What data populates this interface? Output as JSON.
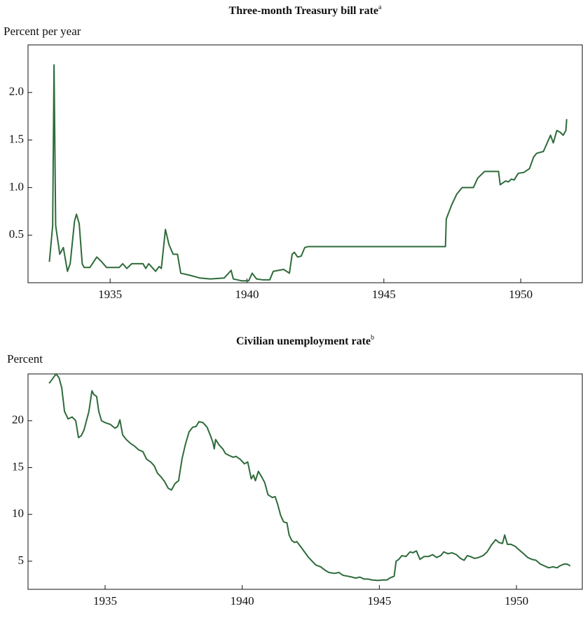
{
  "chart_data": [
    {
      "type": "line",
      "title": "Three-month Treasury bill rate",
      "title_note": "a",
      "y_label": "Percent per year",
      "xlim": [
        1932,
        1952.25
      ],
      "xticks": [
        1935,
        1940,
        1945,
        1950
      ],
      "ylim": [
        0,
        2.5
      ],
      "yticks": [
        0.5,
        {
          "value": 1,
          "label": "1.0"
        },
        1.5,
        {
          "value": 2,
          "label": "2.0"
        }
      ],
      "series": [
        {
          "color": "#2e6b3a",
          "x": [
            1932.78,
            1932.9,
            1932.95,
            1933.01,
            1933.16,
            1933.29,
            1933.44,
            1933.54,
            1933.7,
            1933.77,
            1933.87,
            1933.98,
            1934.05,
            1934.26,
            1934.51,
            1934.69,
            1934.87,
            1935.33,
            1935.46,
            1935.61,
            1935.79,
            1936.2,
            1936.3,
            1936.41,
            1936.66,
            1936.79,
            1936.87,
            1937.02,
            1937.15,
            1937.3,
            1937.46,
            1937.58,
            1937.89,
            1938.27,
            1938.66,
            1939.17,
            1939.42,
            1939.5,
            1939.81,
            1940.06,
            1940.19,
            1940.35,
            1940.58,
            1940.83,
            1940.96,
            1941.34,
            1941.55,
            1941.65,
            1941.73,
            1941.85,
            1941.98,
            1942.11,
            1942.24,
            1947.25,
            1947.28,
            1947.48,
            1947.66,
            1947.86,
            1948.27,
            1948.43,
            1948.68,
            1949.19,
            1949.25,
            1949.45,
            1949.55,
            1949.66,
            1949.76,
            1949.91,
            1950.12,
            1950.32,
            1950.47,
            1950.58,
            1950.83,
            1951.09,
            1951.19,
            1951.32,
            1951.45,
            1951.55,
            1951.65,
            1951.68
          ],
          "values": [
            0.22,
            0.6,
            2.29,
            0.6,
            0.3,
            0.37,
            0.12,
            0.2,
            0.65,
            0.72,
            0.62,
            0.2,
            0.16,
            0.16,
            0.27,
            0.22,
            0.16,
            0.16,
            0.2,
            0.15,
            0.2,
            0.2,
            0.15,
            0.2,
            0.12,
            0.17,
            0.15,
            0.56,
            0.4,
            0.3,
            0.3,
            0.1,
            0.08,
            0.05,
            0.04,
            0.05,
            0.13,
            0.04,
            0.02,
            0.02,
            0.1,
            0.04,
            0.03,
            0.03,
            0.12,
            0.14,
            0.1,
            0.3,
            0.32,
            0.27,
            0.28,
            0.37,
            0.38,
            0.38,
            0.67,
            0.82,
            0.93,
            1.0,
            1.0,
            1.1,
            1.17,
            1.17,
            1.03,
            1.07,
            1.06,
            1.09,
            1.08,
            1.15,
            1.16,
            1.2,
            1.32,
            1.36,
            1.38,
            1.55,
            1.47,
            1.6,
            1.58,
            1.55,
            1.6,
            1.72
          ]
        }
      ]
    },
    {
      "type": "line",
      "title": "Civilian unemployment rate",
      "title_note": "b",
      "y_label": "Percent",
      "xlim": [
        1932.19,
        1952.4
      ],
      "xticks": [
        1935,
        1940,
        1945,
        1950
      ],
      "ylim": [
        2,
        25
      ],
      "yticks": [
        5,
        10,
        15,
        20
      ],
      "series": [
        {
          "color": "#2e6b3a",
          "x": [
            1932.96,
            1933.09,
            1933.21,
            1933.32,
            1933.42,
            1933.52,
            1933.65,
            1933.8,
            1933.93,
            1934.03,
            1934.13,
            1934.23,
            1934.41,
            1934.52,
            1934.59,
            1934.69,
            1934.77,
            1934.87,
            1935,
            1935.2,
            1935.36,
            1935.46,
            1935.54,
            1935.64,
            1935.77,
            1935.92,
            1936.07,
            1936.22,
            1936.38,
            1936.51,
            1936.66,
            1936.79,
            1936.91,
            1937.04,
            1937.17,
            1937.3,
            1937.42,
            1937.55,
            1937.68,
            1937.81,
            1937.93,
            1938.06,
            1938.19,
            1938.32,
            1938.42,
            1938.57,
            1938.72,
            1938.83,
            1938.93,
            1938.98,
            1939.03,
            1939.16,
            1939.29,
            1939.39,
            1939.52,
            1939.67,
            1939.77,
            1939.92,
            1940.08,
            1940.2,
            1940.33,
            1940.41,
            1940.48,
            1940.59,
            1940.71,
            1940.82,
            1940.94,
            1941.1,
            1941.2,
            1941.3,
            1941.4,
            1941.51,
            1941.63,
            1941.71,
            1941.81,
            1941.91,
            1941.99,
            1942.12,
            1942.27,
            1942.42,
            1942.55,
            1942.68,
            1942.86,
            1943.04,
            1943.16,
            1943.37,
            1943.52,
            1943.67,
            1943.85,
            1944.01,
            1944.13,
            1944.29,
            1944.44,
            1944.59,
            1944.72,
            1944.95,
            1945.15,
            1945.28,
            1945.38,
            1945.54,
            1945.61,
            1945.71,
            1945.82,
            1945.97,
            1946.12,
            1946.22,
            1946.35,
            1946.48,
            1946.63,
            1946.79,
            1946.94,
            1947.09,
            1947.24,
            1947.35,
            1947.5,
            1947.65,
            1947.81,
            1947.96,
            1948.09,
            1948.21,
            1948.32,
            1948.47,
            1948.62,
            1948.78,
            1948.93,
            1949.08,
            1949.24,
            1949.36,
            1949.49,
            1949.57,
            1949.67,
            1949.8,
            1949.95,
            1950.1,
            1950.26,
            1950.41,
            1950.56,
            1950.71,
            1950.87,
            1951.02,
            1951.17,
            1951.33,
            1951.48,
            1951.58,
            1951.74,
            1951.84,
            1951.96
          ],
          "values": [
            24,
            24.5,
            25,
            24.6,
            23.5,
            21,
            20.2,
            20.4,
            20,
            18.2,
            18.4,
            19,
            21,
            23.2,
            22.8,
            22.6,
            21,
            20,
            19.8,
            19.6,
            19.2,
            19.4,
            20.1,
            18.5,
            18,
            17.6,
            17.3,
            16.9,
            16.7,
            15.9,
            15.6,
            15.2,
            14.4,
            14,
            13.5,
            12.8,
            12.6,
            13.3,
            13.6,
            16,
            17.5,
            18.8,
            19.3,
            19.4,
            19.9,
            19.8,
            19.3,
            18.5,
            17.7,
            17,
            18,
            17.4,
            17,
            16.5,
            16.3,
            16.1,
            16.2,
            15.9,
            15.4,
            15.6,
            13.8,
            14.2,
            13.6,
            14.6,
            14,
            13.4,
            12.1,
            11.8,
            11.9,
            11,
            9.9,
            9.2,
            9.1,
            7.8,
            7.2,
            7,
            7.1,
            6.6,
            6,
            5.4,
            5,
            4.6,
            4.4,
            4,
            3.8,
            3.7,
            3.8,
            3.5,
            3.4,
            3.3,
            3.2,
            3.3,
            3.1,
            3.1,
            3,
            2.95,
            3,
            3,
            3.2,
            3.4,
            5,
            5.2,
            5.6,
            5.5,
            6,
            5.9,
            6.1,
            5.2,
            5.5,
            5.5,
            5.7,
            5.4,
            5.6,
            6,
            5.8,
            5.9,
            5.7,
            5.3,
            5.1,
            5.6,
            5.5,
            5.3,
            5.4,
            5.6,
            6,
            6.7,
            7.3,
            7,
            6.9,
            7.8,
            6.8,
            6.8,
            6.6,
            6.2,
            5.8,
            5.4,
            5.2,
            5.1,
            4.7,
            4.5,
            4.3,
            4.4,
            4.3,
            4.5,
            4.7,
            4.7,
            4.5
          ]
        }
      ]
    }
  ]
}
